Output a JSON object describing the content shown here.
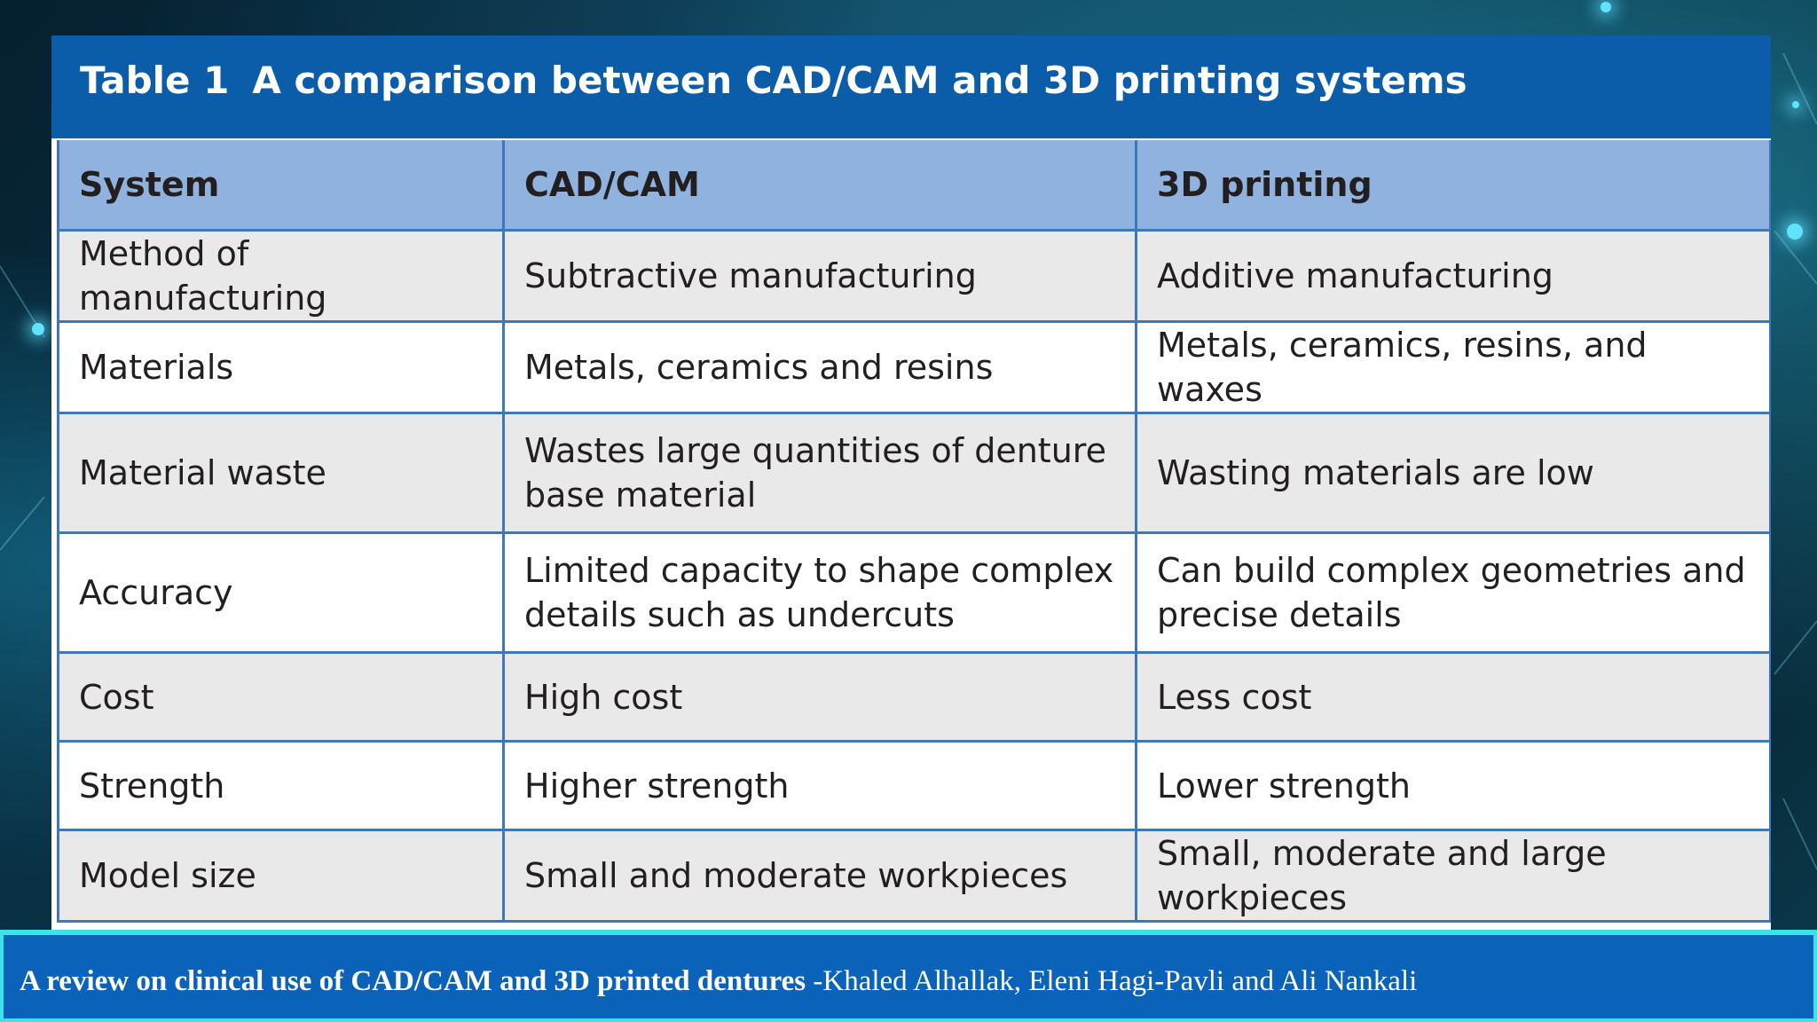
{
  "table": {
    "number": "Table 1",
    "caption": "A comparison between CAD/CAM and 3D printing systems",
    "headers": [
      "System",
      "CAD/CAM",
      "3D printing"
    ],
    "rows": [
      [
        "Method of manufacturing",
        "Subtractive manufacturing",
        "Additive manufacturing"
      ],
      [
        "Materials",
        "Metals, ceramics and resins",
        "Metals, ceramics, resins, and waxes"
      ],
      [
        "Material waste",
        "Wastes large quantities of denture base material",
        "Wasting materials are low"
      ],
      [
        "Accuracy",
        "Limited capacity to shape complex details such as undercuts",
        "Can build complex geometries and precise details"
      ],
      [
        "Cost",
        "High cost",
        "Less cost"
      ],
      [
        "Strength",
        "Higher strength",
        "Lower strength"
      ],
      [
        "Model size",
        "Small and moderate workpieces",
        "Small, moderate and large workpieces"
      ]
    ]
  },
  "footer": {
    "paper_title": "A review on clinical use of CAD/CAM and 3D printed dentures",
    "authors": "-Khaled Alhallak, Eleni Hagi-Pavli and Ali Nankali"
  },
  "colors": {
    "title_bar": "#0b5ca9",
    "header_row": "#8fb2df",
    "row_shade": "#e9e9e9",
    "grid_line": "#3f78b5",
    "footer_bar": "#0a63b8",
    "footer_border": "#3ee0ea"
  }
}
